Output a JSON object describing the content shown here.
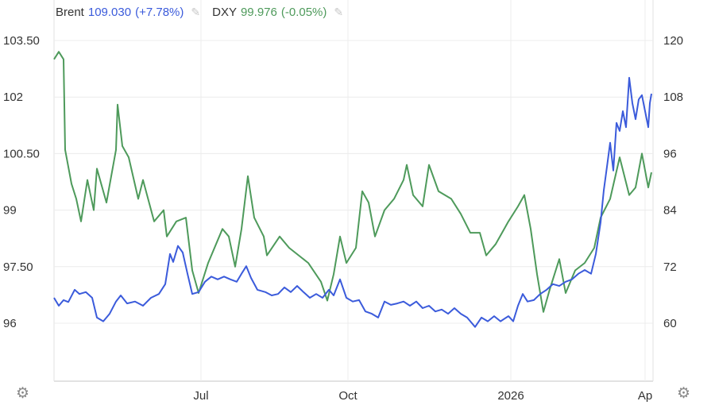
{
  "chart_data": {
    "type": "line",
    "title": "",
    "x_unit": "days since start (early Apr 2025)",
    "xlim": [
      0,
      377
    ],
    "x_ticks": [
      {
        "x": 92.5,
        "label": "Jul"
      },
      {
        "x": 185,
        "label": "Oct"
      },
      {
        "x": 287.5,
        "label": "2026"
      },
      {
        "x": 372,
        "label": "Ap"
      }
    ],
    "y_left": {
      "lim": [
        96,
        103.5
      ],
      "ticks": [
        {
          "v": 96,
          "label": "96"
        },
        {
          "v": 97.5,
          "label": "97.50"
        },
        {
          "v": 99,
          "label": "99"
        },
        {
          "v": 100.5,
          "label": "100.50"
        },
        {
          "v": 102,
          "label": "102"
        },
        {
          "v": 103.5,
          "label": "103.50"
        }
      ]
    },
    "y_right": {
      "lim": [
        60,
        120
      ],
      "ticks": [
        {
          "v": 60,
          "label": "60"
        },
        {
          "v": 72,
          "label": "72"
        },
        {
          "v": 84,
          "label": "84"
        },
        {
          "v": 96,
          "label": "96"
        },
        {
          "v": 108,
          "label": "108"
        },
        {
          "v": 120,
          "label": "120"
        }
      ]
    },
    "grid": true,
    "legend_placement": "top-left",
    "series": [
      {
        "name": "Brent",
        "value": "109.030",
        "change": "(+7.78%)",
        "color": "#3b5bdb",
        "axis": "right",
        "x": [
          0,
          3,
          6,
          9,
          13,
          16,
          20,
          24,
          27,
          31,
          35,
          39,
          42,
          46,
          51,
          56,
          61,
          66,
          70,
          73,
          75,
          78,
          81,
          84,
          87,
          91,
          95,
          99,
          103,
          107,
          111,
          115,
          118,
          121,
          124,
          128,
          133,
          137,
          141,
          145,
          149,
          153,
          157,
          161,
          165,
          169,
          173,
          176,
          180,
          184,
          188,
          192,
          196,
          200,
          204,
          208,
          212,
          216,
          220,
          224,
          228,
          232,
          236,
          240,
          244,
          248,
          252,
          256,
          260,
          265,
          269,
          273,
          277,
          281,
          286,
          289,
          292,
          295,
          298,
          302,
          306,
          310,
          314,
          318,
          322,
          326,
          330,
          334,
          338,
          341,
          344,
          346,
          348,
          350,
          352,
          354,
          356,
          358,
          360,
          362,
          364,
          366,
          368,
          370,
          372,
          374,
          375,
          376
        ],
        "y": [
          65.4,
          63.7,
          64.9,
          64.5,
          67.1,
          66.2,
          66.6,
          65.4,
          61.2,
          60.4,
          62.0,
          64.6,
          65.9,
          64.2,
          64.6,
          63.7,
          65.4,
          66.2,
          68.3,
          74.7,
          73.0,
          76.4,
          75.0,
          70.5,
          66.2,
          66.6,
          68.8,
          69.9,
          69.3,
          69.9,
          69.3,
          68.8,
          70.5,
          72.1,
          69.6,
          67.1,
          66.6,
          65.9,
          66.2,
          67.6,
          66.6,
          67.9,
          66.6,
          65.4,
          66.2,
          65.4,
          67.1,
          65.9,
          69.3,
          65.4,
          64.6,
          64.9,
          62.5,
          62.0,
          61.2,
          64.6,
          63.9,
          64.2,
          64.6,
          63.7,
          64.6,
          63.2,
          63.7,
          62.5,
          62.9,
          62.0,
          63.2,
          62.0,
          61.2,
          59.2,
          61.2,
          60.4,
          61.5,
          60.4,
          61.5,
          60.4,
          63.7,
          66.2,
          64.6,
          64.9,
          66.2,
          67.1,
          68.3,
          67.9,
          68.8,
          69.3,
          70.5,
          71.3,
          70.5,
          74.7,
          81.4,
          88.2,
          93.2,
          98.3,
          92.4,
          102.5,
          100.8,
          105.0,
          101.6,
          112.1,
          106.7,
          103.3,
          107.5,
          108.4,
          105.0,
          101.6,
          106.7,
          108.7
        ]
      },
      {
        "name": "DXY",
        "value": "99.976",
        "change": "(-0.05%)",
        "color": "#4e9a5b",
        "axis": "left",
        "x": [
          0,
          3,
          6,
          7,
          11,
          14,
          17,
          21,
          25,
          27,
          33,
          39,
          40,
          43,
          47,
          53,
          56,
          63,
          69,
          71,
          77,
          83,
          87,
          91,
          97,
          106,
          110,
          114,
          118,
          122,
          126,
          132,
          134,
          142,
          148,
          154,
          160,
          168,
          172,
          176,
          180,
          184,
          190,
          194,
          198,
          202,
          208,
          214,
          220,
          222,
          226,
          232,
          236,
          242,
          250,
          256,
          262,
          268,
          272,
          278,
          286,
          292,
          296,
          300,
          304,
          308,
          312,
          318,
          322,
          328,
          334,
          340,
          344,
          350,
          356,
          362,
          366,
          370,
          374,
          376
        ],
        "y": [
          103.0,
          103.2,
          103.0,
          100.6,
          99.7,
          99.3,
          98.7,
          99.8,
          99.0,
          100.1,
          99.2,
          100.6,
          101.8,
          100.7,
          100.4,
          99.3,
          99.8,
          98.7,
          99.0,
          98.3,
          98.7,
          98.8,
          97.4,
          96.8,
          97.6,
          98.5,
          98.3,
          97.5,
          98.5,
          99.9,
          98.8,
          98.3,
          97.8,
          98.3,
          98.0,
          97.8,
          97.6,
          97.1,
          96.6,
          97.3,
          98.3,
          97.6,
          98.0,
          99.5,
          99.2,
          98.3,
          99.0,
          99.3,
          99.8,
          100.2,
          99.4,
          99.1,
          100.2,
          99.5,
          99.3,
          98.9,
          98.4,
          98.4,
          97.8,
          98.1,
          98.7,
          99.1,
          99.4,
          98.5,
          97.3,
          96.3,
          96.9,
          97.7,
          96.8,
          97.4,
          97.6,
          98.0,
          98.8,
          99.3,
          100.4,
          99.4,
          99.6,
          100.5,
          99.6,
          100.0
        ]
      }
    ]
  },
  "settings_icon_left": "gear-icon",
  "settings_icon_right": "gear-icon"
}
